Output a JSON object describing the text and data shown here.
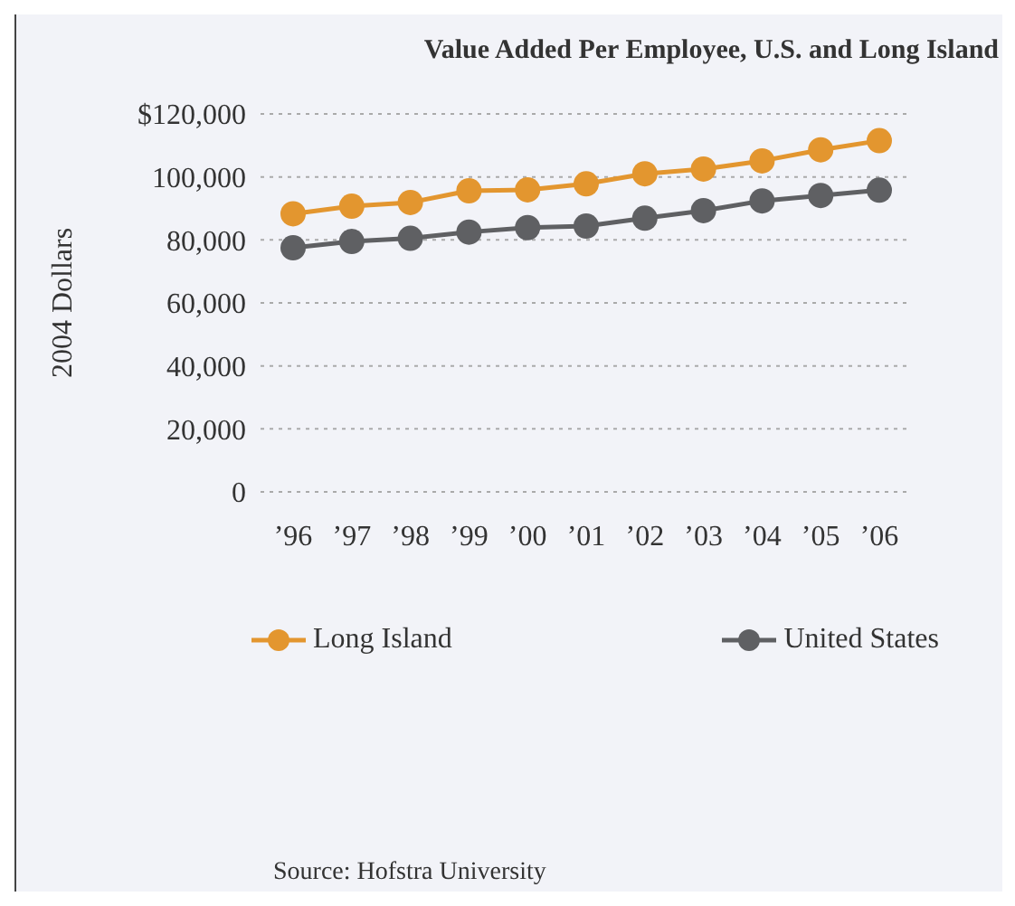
{
  "chart_data": {
    "type": "line",
    "title": "Value Added Per Employee, U.S. and Long Island",
    "ylabel": "2004 Dollars",
    "categories": [
      "’96",
      "’97",
      "’98",
      "’99",
      "’00",
      "’01",
      "’02",
      "’03",
      "’04",
      "’05",
      "’06"
    ],
    "series": [
      {
        "name": "Long Island",
        "color": "#e3962f",
        "values": [
          88300,
          90700,
          91900,
          95600,
          95900,
          97800,
          101000,
          102500,
          105100,
          108600,
          111500
        ]
      },
      {
        "name": "United States",
        "color": "#5f6063",
        "values": [
          77500,
          79500,
          80500,
          82500,
          83900,
          84400,
          86900,
          89300,
          92400,
          94100,
          95800
        ]
      }
    ],
    "ylim": [
      0,
      120000
    ],
    "yticks": [
      {
        "value": 0,
        "label": "0"
      },
      {
        "value": 20000,
        "label": "20,000"
      },
      {
        "value": 40000,
        "label": "40,000"
      },
      {
        "value": 60000,
        "label": "60,000"
      },
      {
        "value": 80000,
        "label": "80,000"
      },
      {
        "value": 100000,
        "label": "100,000"
      },
      {
        "value": 120000,
        "label": "$120,000"
      }
    ],
    "grid": "y",
    "legend": "bottom",
    "marker": "circle",
    "line_style": "solid",
    "annotations": [
      "Source: Hofstra University"
    ]
  }
}
